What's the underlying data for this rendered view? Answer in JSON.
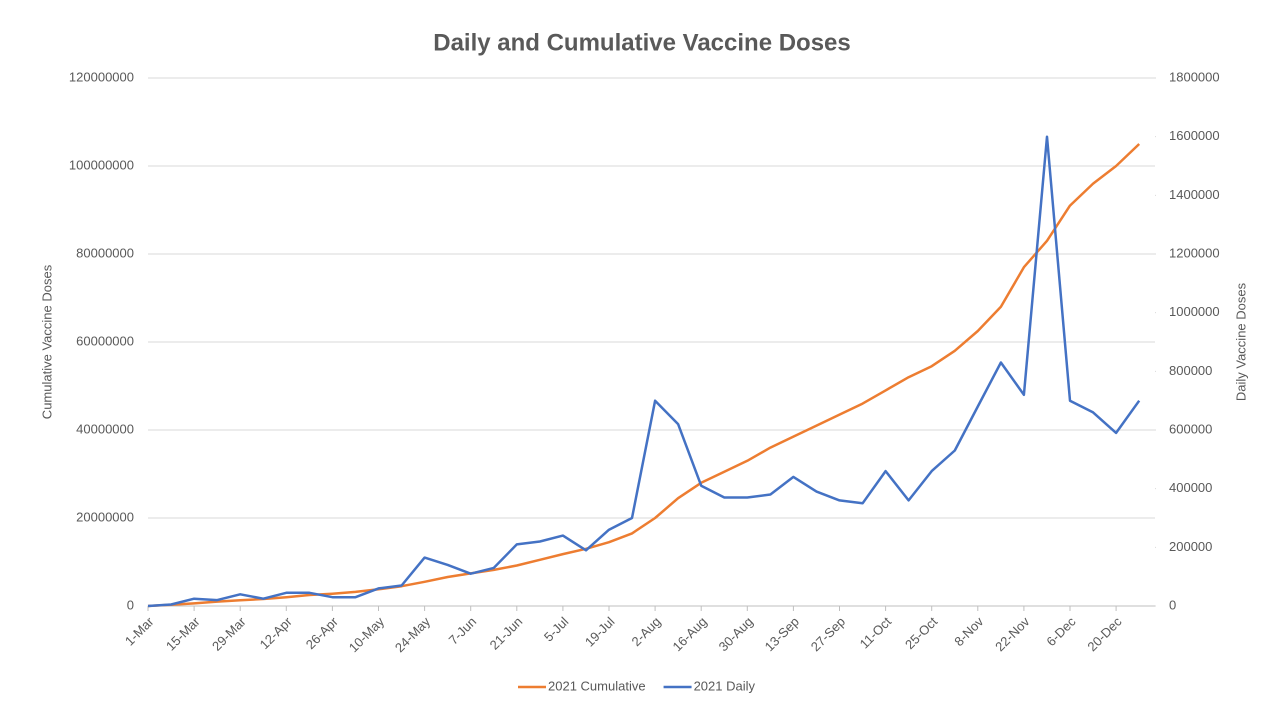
{
  "chart_data": {
    "type": "line",
    "title": "Daily and Cumulative Vaccine Doses",
    "ylabel": "Cumulative Vaccine Doses",
    "y2label": "Daily Vaccine Doses",
    "categories": [
      "1-Mar",
      null,
      "15-Mar",
      null,
      "29-Mar",
      null,
      "12-Apr",
      null,
      "26-Apr",
      null,
      "10-May",
      null,
      "24-May",
      null,
      "7-Jun",
      null,
      "21-Jun",
      null,
      "5-Jul",
      null,
      "19-Jul",
      null,
      "2-Aug",
      null,
      "16-Aug",
      null,
      "30-Aug",
      null,
      "13-Sep",
      null,
      "27-Sep",
      null,
      "11-Oct",
      null,
      "25-Oct",
      null,
      "8-Nov",
      null,
      "22-Nov",
      null,
      "6-Dec",
      null,
      "20-Dec",
      null
    ],
    "series": [
      {
        "name": "2021 Cumulative",
        "color": "#ED7D31",
        "values": [
          0,
          300000,
          600000,
          1000000,
          1300000,
          1600000,
          2000000,
          2500000,
          2800000,
          3200000,
          3800000,
          4500000,
          5500000,
          6600000,
          7400000,
          8200000,
          9200000,
          10500000,
          11800000,
          13000000,
          14500000,
          16500000,
          20000000,
          24500000,
          28000000,
          30500000,
          33000000,
          36000000,
          38500000,
          41000000,
          43500000,
          46000000,
          49000000,
          52000000,
          54500000,
          58000000,
          62500000,
          68000000,
          77000000,
          83000000,
          91000000,
          96000000,
          100000000,
          105000000
        ]
      },
      {
        "name": "2021 Daily",
        "color": "#4472C4",
        "axis": "y2",
        "values": [
          0,
          5000,
          25000,
          20000,
          40000,
          25000,
          45000,
          45000,
          30000,
          30000,
          60000,
          70000,
          165000,
          140000,
          110000,
          130000,
          210000,
          220000,
          240000,
          190000,
          260000,
          300000,
          700000,
          620000,
          410000,
          370000,
          370000,
          380000,
          440000,
          390000,
          360000,
          350000,
          460000,
          360000,
          460000,
          530000,
          680000,
          830000,
          720000,
          1600000,
          700000,
          660000,
          590000,
          700000
        ]
      }
    ],
    "ylim": [
      0,
      120000000
    ],
    "yticks": [
      0,
      20000000,
      40000000,
      60000000,
      80000000,
      100000000,
      120000000
    ],
    "y2lim": [
      0,
      1800000
    ],
    "y2ticks": [
      0,
      200000,
      400000,
      600000,
      800000,
      1000000,
      1200000,
      1400000,
      1600000,
      1800000
    ],
    "grid": true,
    "legend": "bottom"
  }
}
